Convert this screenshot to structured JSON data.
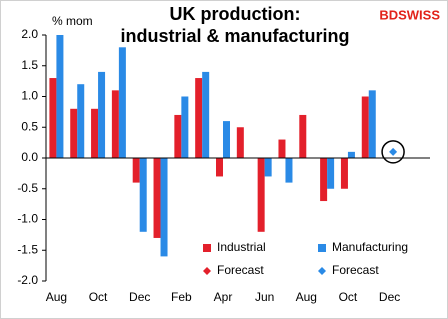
{
  "chart_data": {
    "type": "bar",
    "title": [
      "UK production:",
      "industrial & manufacturing"
    ],
    "logo": "BDSWISS",
    "y_label": "% mom",
    "categories": [
      "Aug",
      null,
      "Oct",
      null,
      "Dec",
      null,
      "Feb",
      null,
      "Apr",
      null,
      "Jun",
      null,
      "Aug",
      null,
      "Oct",
      null,
      "Dec"
    ],
    "series": [
      {
        "name": "Industrial",
        "color": "#e3202b",
        "style": "bar",
        "values": [
          1.3,
          0.8,
          0.8,
          1.1,
          -0.4,
          -1.3,
          0.7,
          1.3,
          -0.3,
          0.5,
          -1.2,
          0.3,
          0.7,
          -0.7,
          -0.5,
          1.0,
          null
        ]
      },
      {
        "name": "Manufacturing",
        "color": "#2a8ae6",
        "style": "bar",
        "values": [
          2.0,
          1.2,
          1.4,
          1.8,
          -1.2,
          -1.6,
          1.0,
          1.4,
          0.6,
          0,
          -0.3,
          -0.4,
          0,
          -0.5,
          0.1,
          1.1,
          null
        ]
      },
      {
        "name": "Forecast",
        "color": "#e3202b",
        "style": "diamond",
        "values": [
          null,
          null,
          null,
          null,
          null,
          null,
          null,
          null,
          null,
          null,
          null,
          null,
          null,
          null,
          null,
          null,
          null
        ]
      },
      {
        "name": "Forecast",
        "color": "#2a8ae6",
        "style": "diamond",
        "values": [
          null,
          null,
          null,
          null,
          null,
          null,
          null,
          null,
          null,
          null,
          null,
          null,
          null,
          null,
          null,
          null,
          0.1
        ]
      }
    ],
    "ylim": [
      -2,
      2
    ],
    "yticks": [
      {
        "value": -2,
        "label": "-2.0"
      },
      {
        "value": -1.5,
        "label": "-1.5"
      },
      {
        "value": -1,
        "label": "-1.0"
      },
      {
        "value": -0.5,
        "label": "-0.5"
      },
      {
        "value": 0,
        "label": "0.0"
      },
      {
        "value": 0.5,
        "label": "0.5"
      },
      {
        "value": 1,
        "label": "1.0"
      },
      {
        "value": 1.5,
        "label": "1.5"
      },
      {
        "value": 2,
        "label": "2.0"
      }
    ],
    "grid": false
  }
}
